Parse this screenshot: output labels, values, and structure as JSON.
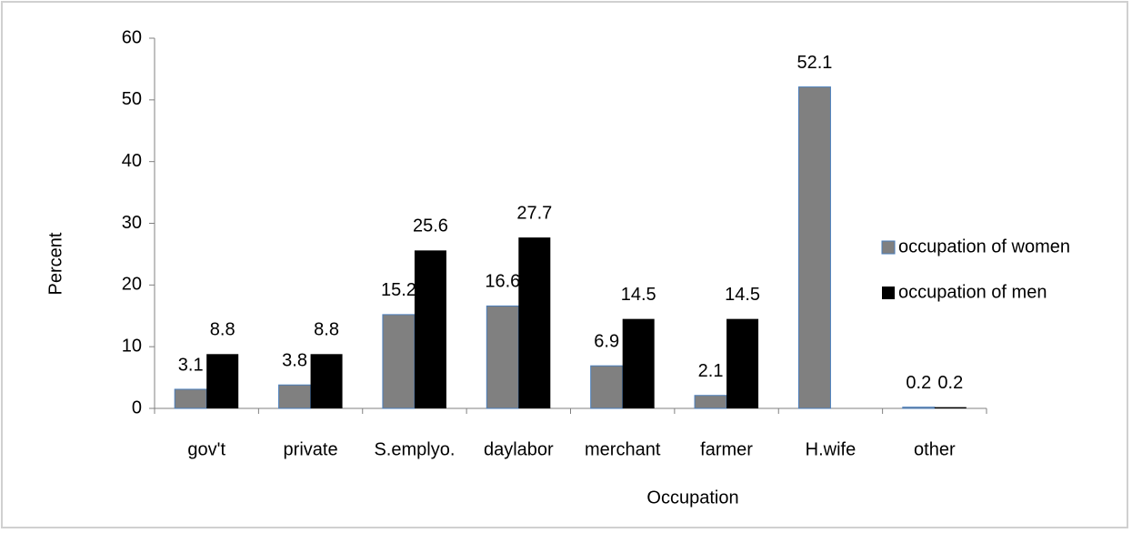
{
  "chart_data": {
    "type": "bar",
    "categories": [
      "gov't",
      "private",
      "S.emplyo.",
      "daylabor",
      "merchant",
      "farmer",
      "H.wife",
      "other"
    ],
    "series": [
      {
        "name": "occupation of women",
        "color": "#808080",
        "values": [
          3.1,
          3.8,
          15.2,
          16.6,
          6.9,
          2.1,
          52.1,
          0.2
        ]
      },
      {
        "name": "occupation of men",
        "color": "#000000",
        "values": [
          8.8,
          8.8,
          25.6,
          27.7,
          14.5,
          14.5,
          null,
          0.2
        ]
      }
    ],
    "xlabel": "Occupation",
    "ylabel": "Percent",
    "ylim": [
      0,
      60
    ],
    "yticks": [
      0,
      10,
      20,
      30,
      40,
      50,
      60
    ],
    "legend": "right"
  }
}
